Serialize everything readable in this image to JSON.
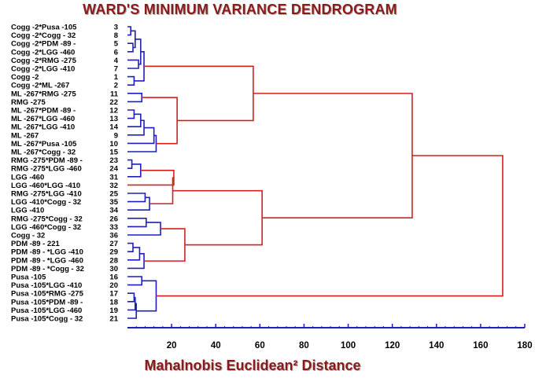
{
  "chart_data": {
    "type": "dendrogram",
    "title": "WARD'S MINIMUM VARIANCE DENDROGRAM",
    "xlabel": "Mahalnobis Euclidean² Distance",
    "xlim": [
      0,
      180
    ],
    "x_ticks": [
      20,
      40,
      60,
      80,
      100,
      120,
      140,
      160,
      180
    ],
    "colors": {
      "low_links": "#1f1fbf",
      "high_links": "#d42020",
      "axis": "#1f1fbf"
    },
    "leaves": [
      {
        "label": "Cogg -2*Pusa -105",
        "num": "3"
      },
      {
        "label": "Cogg -2*Cogg - 32",
        "num": "8"
      },
      {
        "label": "Cogg -2*PDM -89 -",
        "num": "5"
      },
      {
        "label": "Cogg -2*LGG -460",
        "num": "6"
      },
      {
        "label": "Cogg -2*RMG -275",
        "num": "4"
      },
      {
        "label": "Cogg -2*LGG -410",
        "num": "7"
      },
      {
        "label": "Cogg -2",
        "num": "1"
      },
      {
        "label": "Cogg -2*ML -267",
        "num": "2"
      },
      {
        "label": "ML -267*RMG -275",
        "num": "11"
      },
      {
        "label": "RMG -275",
        "num": "22"
      },
      {
        "label": "ML -267*PDM -89 -",
        "num": "12"
      },
      {
        "label": "ML -267*LGG -460",
        "num": "13"
      },
      {
        "label": "ML -267*LGG -410",
        "num": "14"
      },
      {
        "label": "ML -267",
        "num": "9"
      },
      {
        "label": "ML -267*Pusa -105",
        "num": "10"
      },
      {
        "label": "ML -267*Cogg - 32",
        "num": "15"
      },
      {
        "label": "RMG -275*PDM -89 -",
        "num": "23"
      },
      {
        "label": "RMG -275*LGG -460",
        "num": "24"
      },
      {
        "label": "LGG -460",
        "num": "31"
      },
      {
        "label": "LGG -460*LGG -410",
        "num": "32"
      },
      {
        "label": "RMG -275*LGG -410",
        "num": "25"
      },
      {
        "label": "LGG -410*Cogg - 32",
        "num": "35"
      },
      {
        "label": "LGG -410",
        "num": "34"
      },
      {
        "label": "RMG -275*Cogg - 32",
        "num": "26"
      },
      {
        "label": "LGG -460*Cogg - 32",
        "num": "33"
      },
      {
        "label": "Cogg - 32",
        "num": "36"
      },
      {
        "label": "PDM -89 - 221",
        "num": "27"
      },
      {
        "label": "PDM -89 - *LGG -410",
        "num": "29"
      },
      {
        "label": "PDM -89 - *LGG -460",
        "num": "28"
      },
      {
        "label": "PDM -89 - *Cogg - 32",
        "num": "30"
      },
      {
        "label": "Pusa -105",
        "num": "16"
      },
      {
        "label": "Pusa -105*LGG -410",
        "num": "20"
      },
      {
        "label": "Pusa -105*RMG -275",
        "num": "17"
      },
      {
        "label": "Pusa -105*PDM -89 -",
        "num": "18"
      },
      {
        "label": "Pusa -105*LGG -460",
        "num": "19"
      },
      {
        "label": "Pusa -105*Cogg - 32",
        "num": "21"
      }
    ],
    "merges": [
      {
        "a": "L0",
        "b": "L1",
        "h": 1.5
      },
      {
        "a": "L2",
        "b": "L3",
        "h": 2.5
      },
      {
        "a": "M0",
        "b": "M1",
        "h": 3.5
      },
      {
        "a": "L4",
        "b": "L5",
        "h": 5.0
      },
      {
        "a": "M2",
        "b": "M3",
        "h": 6.0
      },
      {
        "a": "L6",
        "b": "L7",
        "h": 3.0
      },
      {
        "a": "M4",
        "b": "M5",
        "h": 7.5
      },
      {
        "a": "L8",
        "b": "L9",
        "h": 6.5
      },
      {
        "a": "L10",
        "b": "L11",
        "h": 3.0
      },
      {
        "a": "M8",
        "b": "L12",
        "h": 6.0
      },
      {
        "a": "M9",
        "b": "L13",
        "h": 7.5
      },
      {
        "a": "M10",
        "b": "L14",
        "h": 12.0
      },
      {
        "a": "M11",
        "b": "L15",
        "h": 13.0
      },
      {
        "a": "M7",
        "b": "M12",
        "h": 22.5
      },
      {
        "a": "M6",
        "b": "M13",
        "h": 57.0
      },
      {
        "a": "L16",
        "b": "L17",
        "h": 2.0
      },
      {
        "a": "M15",
        "b": "L18",
        "h": 6.0
      },
      {
        "a": "M16",
        "b": "L19",
        "h": 21.0
      },
      {
        "a": "L20",
        "b": "L21",
        "h": 8.0
      },
      {
        "a": "M18",
        "b": "L22",
        "h": 10.0
      },
      {
        "a": "M17",
        "b": "M19",
        "h": 20.5
      },
      {
        "a": "L23",
        "b": "L24",
        "h": 8.5
      },
      {
        "a": "M21",
        "b": "L25",
        "h": 15.0
      },
      {
        "a": "L26",
        "b": "L27",
        "h": 2.5
      },
      {
        "a": "M23",
        "b": "L28",
        "h": 5.5
      },
      {
        "a": "M24",
        "b": "L29",
        "h": 7.5
      },
      {
        "a": "M22",
        "b": "M25",
        "h": 26.0
      },
      {
        "a": "M20",
        "b": "M26",
        "h": 61.0
      },
      {
        "a": "M14",
        "b": "M27",
        "h": 129.0
      },
      {
        "a": "L30",
        "b": "L31",
        "h": 6.5
      },
      {
        "a": "L32",
        "b": "L33",
        "h": 3.0
      },
      {
        "a": "M30",
        "b": "L34",
        "h": 3.5
      },
      {
        "a": "M31",
        "b": "L35",
        "h": 4.0
      },
      {
        "a": "M29",
        "b": "M32",
        "h": 13.0
      },
      {
        "a": "M28",
        "b": "M33",
        "h": 170.0
      }
    ],
    "color_threshold": 20
  }
}
